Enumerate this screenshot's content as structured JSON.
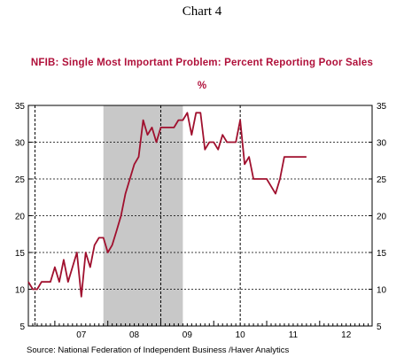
{
  "chart_label": "Chart 4",
  "colors": {
    "title": "#b0103a",
    "series": "#a0102e",
    "recession": "#c8c8c8"
  },
  "chart_data": {
    "type": "line",
    "title": "NFIB: Single Most Important Problem: Percent Reporting Poor Sales",
    "subtitle": "%",
    "source": "Source:  National Federation of Independent Business /Haver Analytics",
    "x_range": [
      2006.5,
      2012.99
    ],
    "y_range": [
      5,
      35
    ],
    "y_ticks": [
      5,
      10,
      15,
      20,
      25,
      30,
      35
    ],
    "x_tick_labels": [
      {
        "label": "07",
        "year": 2007
      },
      {
        "label": "08",
        "year": 2008
      },
      {
        "label": "09",
        "year": 2009
      },
      {
        "label": "10",
        "year": 2010
      },
      {
        "label": "11",
        "year": 2011
      },
      {
        "label": "12",
        "year": 2012
      }
    ],
    "recession_shading": [
      2007.917,
      2009.417
    ],
    "dashed_vertical_lines": [
      2006.625,
      2009.0,
      2010.5
    ],
    "grid_horizontal": "dashed",
    "series": [
      {
        "x": [
          2006.5,
          2006.583,
          2006.667,
          2006.75,
          2006.833,
          2006.917,
          2007.0,
          2007.083,
          2007.167,
          2007.25,
          2007.333,
          2007.417,
          2007.5,
          2007.583,
          2007.667,
          2007.75,
          2007.833,
          2007.917,
          2008.0,
          2008.083,
          2008.167,
          2008.25,
          2008.333,
          2008.417,
          2008.5,
          2008.583,
          2008.667,
          2008.75,
          2008.833,
          2008.917,
          2009.0,
          2009.083,
          2009.167,
          2009.25,
          2009.333,
          2009.417,
          2009.5,
          2009.583,
          2009.667,
          2009.75,
          2009.833,
          2009.917,
          2010.0,
          2010.083,
          2010.167,
          2010.25,
          2010.333,
          2010.417,
          2010.5,
          2010.583,
          2010.667,
          2010.75,
          2010.833,
          2010.917,
          2011.0,
          2011.083,
          2011.167,
          2011.25,
          2011.333,
          2011.417,
          2011.5,
          2011.583,
          2011.667,
          2011.75
        ],
        "y": [
          11,
          10,
          10,
          11,
          11,
          11,
          13,
          11,
          14,
          11,
          13,
          15,
          9,
          15,
          13,
          16,
          17,
          17,
          15,
          16,
          18,
          20,
          23,
          25,
          27,
          28,
          33,
          31,
          32,
          30,
          32,
          32,
          32,
          32,
          33,
          33,
          34,
          31,
          34,
          34,
          29,
          30,
          30,
          29,
          31,
          30,
          30,
          30,
          33,
          27,
          28,
          25,
          25,
          25,
          25,
          24,
          23,
          25,
          28,
          28,
          28,
          28,
          28,
          28
        ]
      }
    ]
  }
}
